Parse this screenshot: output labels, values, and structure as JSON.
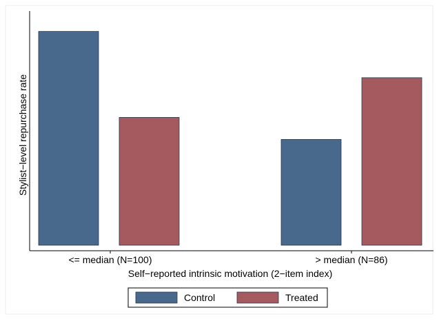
{
  "chart_data": {
    "type": "bar",
    "title": "",
    "xlabel": "Self−reported intrinsic motivation (2−item index)",
    "ylabel": "Stylist−level repurchase rate",
    "categories": [
      "<= median (N=100)",
      "> median (N=86)"
    ],
    "series": [
      {
        "name": "Control",
        "values": [
          0.97,
          0.48
        ]
      },
      {
        "name": "Treated",
        "values": [
          0.58,
          0.76
        ]
      }
    ],
    "ylim": [
      0,
      1
    ],
    "y_tick_labels_shown": false,
    "grid": false,
    "legend": "bottom",
    "colors": {
      "Control": "#49698c",
      "Treated": "#a45a5f"
    }
  }
}
